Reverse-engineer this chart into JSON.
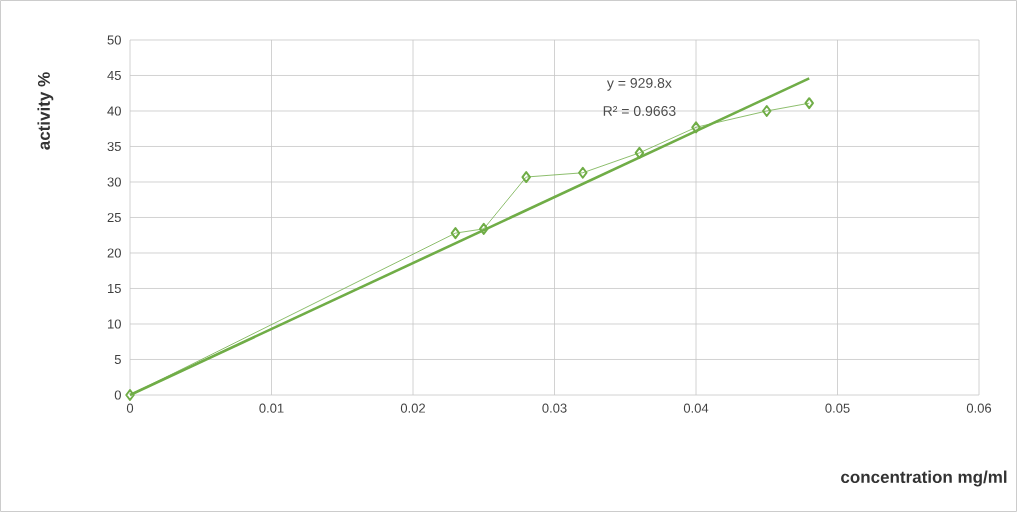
{
  "chart_data": {
    "type": "line",
    "xlabel": "concentration mg/ml",
    "ylabel": "activity %",
    "annotations": [
      "y = 929.8x",
      "R² = 0.9663"
    ],
    "x": [
      0,
      0.023,
      0.025,
      0.028,
      0.032,
      0.036,
      0.04,
      0.045,
      0.048
    ],
    "series": [
      {
        "color": "#70ad47",
        "marker": "diamond",
        "values": [
          0,
          22.8,
          23.4,
          30.7,
          31.3,
          34.1,
          37.7,
          40.0,
          41.1
        ]
      },
      {
        "type": "line",
        "color": "#70ad47",
        "marker": "none",
        "x": [
          0,
          0.048
        ],
        "values": [
          0,
          44.6
        ]
      }
    ],
    "xlim": [
      0,
      0.06
    ],
    "xticks": [
      0,
      0.01,
      0.02,
      0.03,
      0.04,
      0.05,
      0.06
    ],
    "ylim": [
      0,
      50
    ],
    "yticks": [
      0,
      5,
      10,
      15,
      20,
      25,
      30,
      35,
      40,
      45,
      50
    ],
    "grid": true
  }
}
